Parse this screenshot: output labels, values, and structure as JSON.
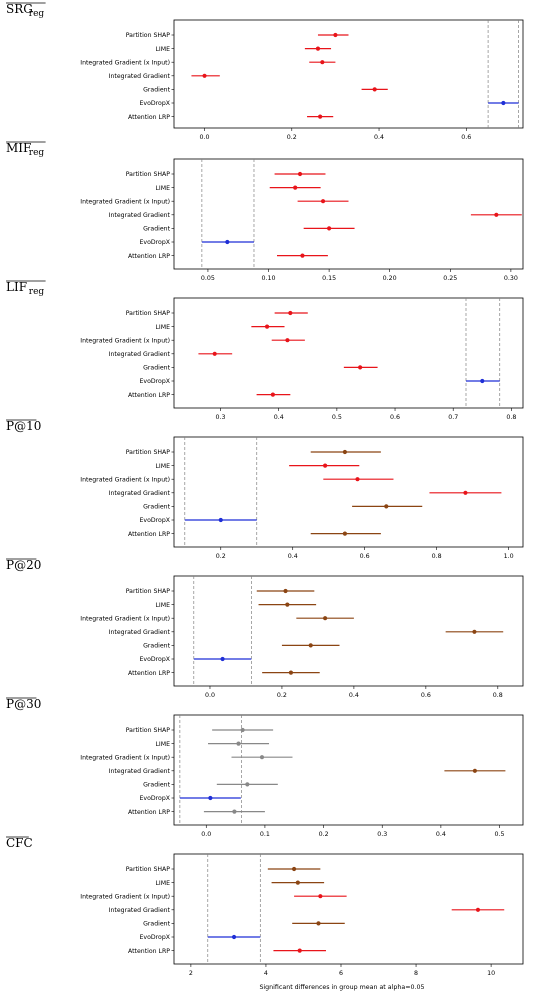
{
  "methods": [
    "Partition SHAP",
    "LIME",
    "Integrated Gradient (x Input)",
    "Integrated Gradient",
    "Gradient",
    "EvoDropX",
    "Attention LRP"
  ],
  "xlabel": "Significant differences in group mean at alpha=0.05",
  "colors": {
    "red": "#e8141a",
    "blue": "#1f2fd6",
    "brown": "#8b4513",
    "gray": "#888888",
    "dashed": "#808080",
    "frame": "#000000"
  },
  "chart_data": [
    {
      "type": "scatter",
      "title_main": "SRG",
      "title_sub": "reg",
      "overline": true,
      "xlim": [
        -0.07,
        0.73
      ],
      "xticks": [
        0.0,
        0.2,
        0.4,
        0.6
      ],
      "tick_decimals": 1,
      "ref_lines": [
        0.65,
        0.72
      ],
      "points": [
        {
          "center": 0.3,
          "lo": 0.26,
          "hi": 0.33,
          "color": "red"
        },
        {
          "center": 0.26,
          "lo": 0.23,
          "hi": 0.29,
          "color": "red"
        },
        {
          "center": 0.27,
          "lo": 0.24,
          "hi": 0.3,
          "color": "red"
        },
        {
          "center": 0.0,
          "lo": -0.03,
          "hi": 0.035,
          "color": "red"
        },
        {
          "center": 0.39,
          "lo": 0.36,
          "hi": 0.42,
          "color": "red"
        },
        {
          "center": 0.685,
          "lo": 0.65,
          "hi": 0.72,
          "color": "blue"
        },
        {
          "center": 0.265,
          "lo": 0.235,
          "hi": 0.295,
          "color": "red"
        }
      ]
    },
    {
      "type": "scatter",
      "title_main": "MIF",
      "title_sub": "reg",
      "overline": true,
      "xlim": [
        0.022,
        0.31
      ],
      "xticks": [
        0.05,
        0.1,
        0.15,
        0.2,
        0.25,
        0.3
      ],
      "tick_decimals": 2,
      "ref_lines": [
        0.045,
        0.088
      ],
      "points": [
        {
          "center": 0.126,
          "lo": 0.105,
          "hi": 0.147,
          "color": "red"
        },
        {
          "center": 0.122,
          "lo": 0.101,
          "hi": 0.143,
          "color": "red"
        },
        {
          "center": 0.145,
          "lo": 0.124,
          "hi": 0.166,
          "color": "red"
        },
        {
          "center": 0.288,
          "lo": 0.267,
          "hi": 0.309,
          "color": "red"
        },
        {
          "center": 0.15,
          "lo": 0.129,
          "hi": 0.171,
          "color": "red"
        },
        {
          "center": 0.066,
          "lo": 0.045,
          "hi": 0.088,
          "color": "blue"
        },
        {
          "center": 0.128,
          "lo": 0.107,
          "hi": 0.149,
          "color": "red"
        }
      ]
    },
    {
      "type": "scatter",
      "title_main": "LIF",
      "title_sub": "reg",
      "overline": true,
      "xlim": [
        0.22,
        0.82
      ],
      "xticks": [
        0.3,
        0.4,
        0.5,
        0.6,
        0.7,
        0.8
      ],
      "tick_decimals": 1,
      "ref_lines": [
        0.722,
        0.78
      ],
      "points": [
        {
          "center": 0.42,
          "lo": 0.393,
          "hi": 0.45,
          "color": "red"
        },
        {
          "center": 0.38,
          "lo": 0.353,
          "hi": 0.41,
          "color": "red"
        },
        {
          "center": 0.415,
          "lo": 0.388,
          "hi": 0.445,
          "color": "red"
        },
        {
          "center": 0.29,
          "lo": 0.262,
          "hi": 0.32,
          "color": "red"
        },
        {
          "center": 0.54,
          "lo": 0.512,
          "hi": 0.57,
          "color": "red"
        },
        {
          "center": 0.75,
          "lo": 0.722,
          "hi": 0.78,
          "color": "blue"
        },
        {
          "center": 0.39,
          "lo": 0.362,
          "hi": 0.42,
          "color": "red"
        }
      ]
    },
    {
      "type": "scatter",
      "title_main": "P@10",
      "title_sub": "",
      "overline": true,
      "xlim": [
        0.07,
        1.04
      ],
      "xticks": [
        0.2,
        0.4,
        0.6,
        0.8,
        1.0
      ],
      "tick_decimals": 1,
      "ref_lines": [
        0.1,
        0.3
      ],
      "points": [
        {
          "center": 0.545,
          "lo": 0.45,
          "hi": 0.645,
          "color": "brown"
        },
        {
          "center": 0.49,
          "lo": 0.39,
          "hi": 0.585,
          "color": "red"
        },
        {
          "center": 0.58,
          "lo": 0.485,
          "hi": 0.68,
          "color": "red"
        },
        {
          "center": 0.88,
          "lo": 0.78,
          "hi": 0.98,
          "color": "red"
        },
        {
          "center": 0.66,
          "lo": 0.565,
          "hi": 0.76,
          "color": "brown"
        },
        {
          "center": 0.2,
          "lo": 0.1,
          "hi": 0.3,
          "color": "blue"
        },
        {
          "center": 0.545,
          "lo": 0.45,
          "hi": 0.645,
          "color": "brown"
        }
      ]
    },
    {
      "type": "scatter",
      "title_main": "P@20",
      "title_sub": "",
      "overline": true,
      "xlim": [
        -0.1,
        0.87
      ],
      "xticks": [
        0.0,
        0.2,
        0.4,
        0.6,
        0.8
      ],
      "tick_decimals": 1,
      "ref_lines": [
        -0.045,
        0.115
      ],
      "points": [
        {
          "center": 0.21,
          "lo": 0.13,
          "hi": 0.29,
          "color": "brown"
        },
        {
          "center": 0.215,
          "lo": 0.135,
          "hi": 0.295,
          "color": "brown"
        },
        {
          "center": 0.32,
          "lo": 0.24,
          "hi": 0.4,
          "color": "brown"
        },
        {
          "center": 0.735,
          "lo": 0.655,
          "hi": 0.815,
          "color": "brown"
        },
        {
          "center": 0.28,
          "lo": 0.2,
          "hi": 0.36,
          "color": "brown"
        },
        {
          "center": 0.035,
          "lo": -0.045,
          "hi": 0.115,
          "color": "blue"
        },
        {
          "center": 0.225,
          "lo": 0.145,
          "hi": 0.305,
          "color": "brown"
        }
      ]
    },
    {
      "type": "scatter",
      "title_main": "P@30",
      "title_sub": "",
      "overline": true,
      "xlim": [
        -0.055,
        0.54
      ],
      "xticks": [
        0.0,
        0.1,
        0.2,
        0.3,
        0.4,
        0.5
      ],
      "tick_decimals": 1,
      "ref_lines": [
        -0.045,
        0.06
      ],
      "points": [
        {
          "center": 0.062,
          "lo": 0.01,
          "hi": 0.114,
          "color": "gray"
        },
        {
          "center": 0.055,
          "lo": 0.003,
          "hi": 0.107,
          "color": "gray"
        },
        {
          "center": 0.095,
          "lo": 0.043,
          "hi": 0.147,
          "color": "gray"
        },
        {
          "center": 0.458,
          "lo": 0.406,
          "hi": 0.51,
          "color": "brown"
        },
        {
          "center": 0.07,
          "lo": 0.018,
          "hi": 0.122,
          "color": "gray"
        },
        {
          "center": 0.007,
          "lo": -0.045,
          "hi": 0.059,
          "color": "blue"
        },
        {
          "center": 0.048,
          "lo": -0.004,
          "hi": 0.1,
          "color": "gray"
        }
      ]
    },
    {
      "type": "scatter",
      "title_main": "CFC",
      "title_sub": "",
      "overline": true,
      "xlim": [
        1.55,
        10.85
      ],
      "xticks": [
        2,
        4,
        6,
        8,
        10
      ],
      "tick_decimals": 0,
      "ref_lines": [
        2.45,
        3.85
      ],
      "points": [
        {
          "center": 4.75,
          "lo": 4.05,
          "hi": 5.45,
          "color": "brown"
        },
        {
          "center": 4.85,
          "lo": 4.15,
          "hi": 5.55,
          "color": "brown"
        },
        {
          "center": 5.45,
          "lo": 4.75,
          "hi": 6.15,
          "color": "red"
        },
        {
          "center": 9.65,
          "lo": 8.95,
          "hi": 10.35,
          "color": "red"
        },
        {
          "center": 5.4,
          "lo": 4.7,
          "hi": 6.1,
          "color": "brown"
        },
        {
          "center": 3.15,
          "lo": 2.45,
          "hi": 3.85,
          "color": "blue"
        },
        {
          "center": 4.9,
          "lo": 4.2,
          "hi": 5.6,
          "color": "red"
        }
      ]
    }
  ]
}
